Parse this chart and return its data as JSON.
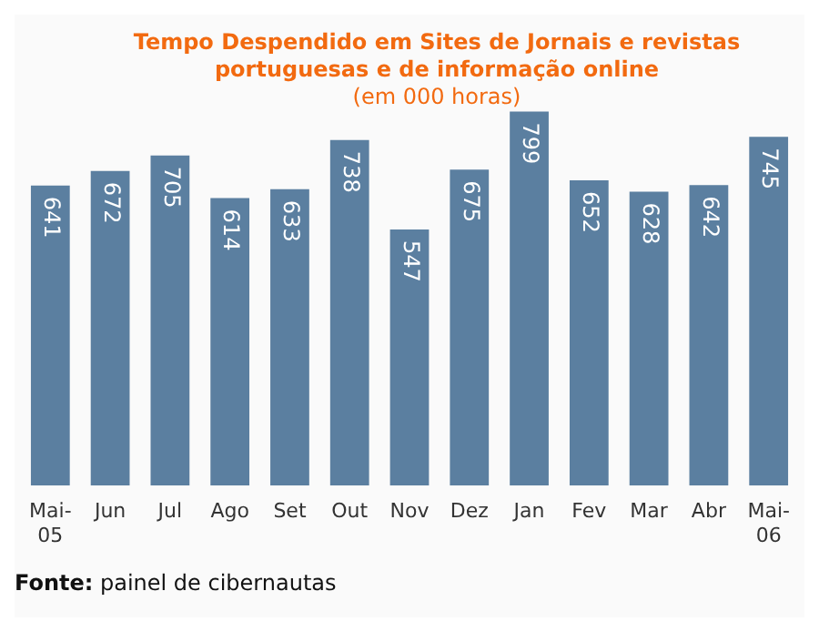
{
  "chart_data": {
    "type": "bar",
    "title": "Tempo Despendido em Sites de Jornais e revistas portuguesas e de informação online",
    "subtitle": "(em 000 horas)",
    "categories": [
      "Mai-05",
      "Jun",
      "Jul",
      "Ago",
      "Set",
      "Out",
      "Nov",
      "Dez",
      "Jan",
      "Fev",
      "Mar",
      "Abr",
      "Mai-06"
    ],
    "values": [
      641,
      672,
      705,
      614,
      633,
      738,
      547,
      675,
      799,
      652,
      628,
      642,
      745
    ],
    "color": "#5b7fa0",
    "data_labels": true,
    "grid": false,
    "legend": false,
    "annotations": [
      "Fonte: painel de cibernautas"
    ]
  }
}
